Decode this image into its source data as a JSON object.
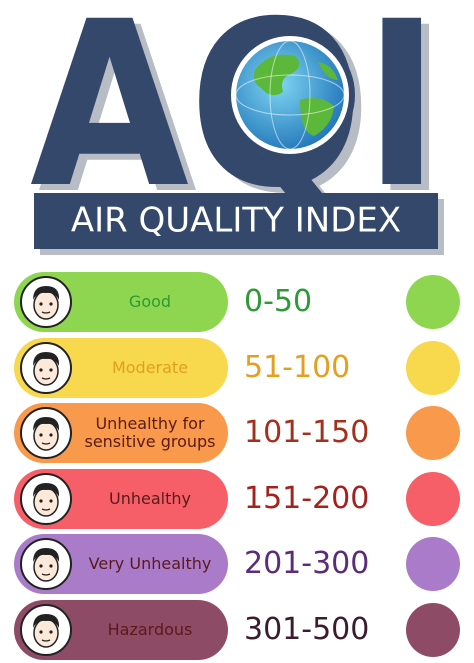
{
  "header": {
    "title": "AQI",
    "subtitle": "AIR QUALITY INDEX"
  },
  "levels": [
    {
      "label": "Good",
      "range": "0-50",
      "color": "#8fd650",
      "text_color": "#2e9a35"
    },
    {
      "label": "Moderate",
      "range": "51-100",
      "color": "#f8d84c",
      "text_color": "#e59f1e"
    },
    {
      "label": "Unhealthy for sensitive groups",
      "range": "101-150",
      "color": "#f8994c",
      "text_color": "#a3301c"
    },
    {
      "label": "Unhealthy",
      "range": "151-200",
      "color": "#f65f68",
      "text_color": "#a3231c"
    },
    {
      "label": "Very Unhealthy",
      "range": "201-300",
      "color": "#a97bc9",
      "text_color": "#5a2c7a"
    },
    {
      "label": "Hazardous",
      "range": "301-500",
      "color": "#8e4b66",
      "text_color": "#3b1c2c"
    }
  ]
}
